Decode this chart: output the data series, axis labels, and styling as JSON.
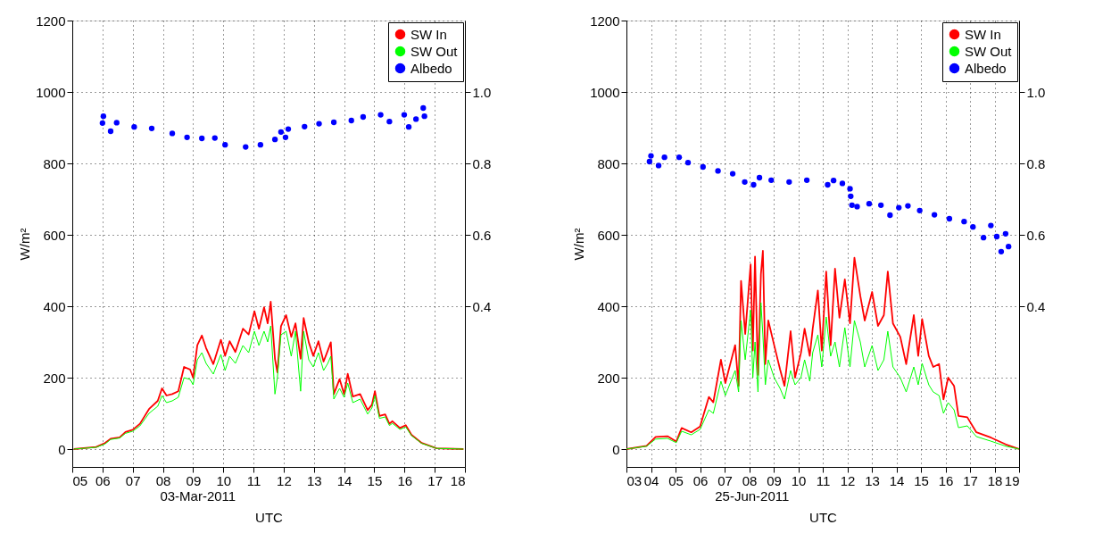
{
  "chart_data": [
    {
      "type": "line",
      "xlabel": "UTC",
      "ylabel": "W/m²",
      "annotations": [
        "03-Mar-2011"
      ],
      "legend": "top right",
      "grid": true,
      "xlim": [
        5,
        18
      ],
      "xticks": [
        {
          "value": 5,
          "label": "05"
        },
        {
          "value": 6,
          "label": "06"
        },
        {
          "value": 7,
          "label": "07"
        },
        {
          "value": 8,
          "label": "08"
        },
        {
          "value": 9,
          "label": "09"
        },
        {
          "value": 10,
          "label": "10"
        },
        {
          "value": 11,
          "label": "11"
        },
        {
          "value": 12,
          "label": "12"
        },
        {
          "value": 13,
          "label": "13"
        },
        {
          "value": 14,
          "label": "14"
        },
        {
          "value": 15,
          "label": "15"
        },
        {
          "value": 16,
          "label": "16"
        },
        {
          "value": 17,
          "label": "17"
        },
        {
          "value": 18,
          "label": "18"
        }
      ],
      "ylim": [
        -50,
        1200
      ],
      "yticks": [
        0,
        200,
        400,
        600,
        800,
        1000,
        1200
      ],
      "y2lim": [
        -0.05,
        1.2
      ],
      "y2ticks": [
        0.4,
        0.6,
        0.8,
        {
          "value": 1,
          "label": "1.0"
        }
      ],
      "series": [
        {
          "name": "SW In",
          "color": "#ff0000",
          "x": [
            5.05,
            5.79,
            6.08,
            6.27,
            6.57,
            6.76,
            7.0,
            7.24,
            7.54,
            7.83,
            7.97,
            8.12,
            8.31,
            8.51,
            8.7,
            8.9,
            9.0,
            9.14,
            9.29,
            9.43,
            9.67,
            9.92,
            10.06,
            10.21,
            10.4,
            10.65,
            10.84,
            11.03,
            11.18,
            11.35,
            11.47,
            11.57,
            11.71,
            11.79,
            11.91,
            12.08,
            12.25,
            12.39,
            12.56,
            12.66,
            12.83,
            12.98,
            13.15,
            13.32,
            13.46,
            13.56,
            13.66,
            13.85,
            14.0,
            14.12,
            14.29,
            14.53,
            14.78,
            14.92,
            15.02,
            15.17,
            15.36,
            15.5,
            15.6,
            15.85,
            16.04,
            16.23,
            16.57,
            17.06,
            17.95
          ],
          "values": [
            0,
            6,
            17,
            29,
            33,
            48,
            54,
            71,
            112,
            135,
            170,
            150,
            154,
            162,
            230,
            223,
            200,
            291,
            318,
            283,
            238,
            306,
            261,
            302,
            272,
            337,
            321,
            386,
            337,
            397,
            352,
            413,
            253,
            215,
            344,
            375,
            314,
            352,
            253,
            367,
            299,
            261,
            302,
            245,
            276,
            299,
            154,
            196,
            154,
            211,
            147,
            154,
            109,
            124,
            162,
            93,
            97,
            71,
            78,
            59,
            67,
            40,
            17,
            2,
            0
          ]
        },
        {
          "name": "SW Out",
          "color": "#00ff00",
          "x": [
            5.05,
            5.79,
            6.08,
            6.27,
            6.57,
            6.76,
            7.0,
            7.24,
            7.54,
            7.83,
            7.97,
            8.12,
            8.31,
            8.51,
            8.7,
            8.9,
            9.0,
            9.14,
            9.29,
            9.43,
            9.67,
            9.92,
            10.06,
            10.21,
            10.4,
            10.65,
            10.84,
            11.03,
            11.18,
            11.35,
            11.47,
            11.57,
            11.71,
            11.79,
            11.91,
            12.08,
            12.25,
            12.39,
            12.56,
            12.66,
            12.83,
            12.98,
            13.15,
            13.32,
            13.46,
            13.56,
            13.66,
            13.85,
            14.0,
            14.12,
            14.29,
            14.53,
            14.78,
            14.92,
            15.02,
            15.17,
            15.36,
            15.5,
            15.6,
            15.85,
            16.04,
            16.23,
            16.57,
            17.06,
            17.95
          ],
          "values": [
            0,
            5,
            14,
            27,
            31,
            44,
            50,
            65,
            100,
            120,
            150,
            130,
            135,
            145,
            200,
            195,
            180,
            250,
            270,
            240,
            210,
            265,
            220,
            260,
            240,
            290,
            270,
            330,
            290,
            330,
            300,
            345,
            154,
            200,
            320,
            330,
            260,
            330,
            162,
            330,
            250,
            230,
            270,
            220,
            240,
            260,
            140,
            170,
            145,
            185,
            130,
            140,
            98,
            115,
            150,
            86,
            90,
            66,
            72,
            55,
            62,
            38,
            16,
            2,
            0
          ]
        },
        {
          "name": "Albedo",
          "type": "scatter",
          "axis": "y2",
          "color": "#0000ff",
          "marker": "circle",
          "x": [
            6.0,
            6.03,
            6.27,
            6.47,
            7.05,
            7.63,
            8.31,
            8.8,
            9.29,
            9.72,
            10.06,
            10.74,
            11.23,
            11.71,
            11.91,
            12.06,
            12.15,
            12.69,
            13.17,
            13.66,
            14.24,
            14.63,
            15.21,
            15.5,
            15.99,
            16.14,
            16.38,
            16.62,
            16.66
          ],
          "values": [
            0.913,
            0.932,
            0.89,
            0.914,
            0.902,
            0.898,
            0.884,
            0.873,
            0.87,
            0.871,
            0.852,
            0.846,
            0.852,
            0.867,
            0.888,
            0.873,
            0.896,
            0.903,
            0.911,
            0.915,
            0.92,
            0.93,
            0.936,
            0.917,
            0.936,
            0.902,
            0.924,
            0.955,
            0.932
          ]
        }
      ]
    },
    {
      "type": "line",
      "xlabel": "UTC",
      "ylabel": "W/m²",
      "annotations": [
        "25-Jun-2011"
      ],
      "legend": "top right",
      "grid": true,
      "xlim": [
        3,
        19
      ],
      "xticks": [
        {
          "value": 3,
          "label": "03"
        },
        {
          "value": 4,
          "label": "04"
        },
        {
          "value": 5,
          "label": "05"
        },
        {
          "value": 6,
          "label": "06"
        },
        {
          "value": 7,
          "label": "07"
        },
        {
          "value": 8,
          "label": "08"
        },
        {
          "value": 9,
          "label": "09"
        },
        {
          "value": 10,
          "label": "10"
        },
        {
          "value": 11,
          "label": "11"
        },
        {
          "value": 12,
          "label": "12"
        },
        {
          "value": 13,
          "label": "13"
        },
        {
          "value": 14,
          "label": "14"
        },
        {
          "value": 15,
          "label": "15"
        },
        {
          "value": 16,
          "label": "16"
        },
        {
          "value": 17,
          "label": "17"
        },
        {
          "value": 18,
          "label": "18"
        },
        {
          "value": 19,
          "label": "19"
        }
      ],
      "ylim": [
        -50,
        1200
      ],
      "yticks": [
        0,
        200,
        400,
        600,
        800,
        1000,
        1200
      ],
      "y2lim": [
        -0.05,
        1.2
      ],
      "y2ticks": [
        0.4,
        0.6,
        0.8,
        {
          "value": 1,
          "label": "1.0"
        }
      ],
      "series": [
        {
          "name": "SW In",
          "color": "#ff0000",
          "x": [
            3.0,
            3.82,
            4.19,
            4.67,
            5.03,
            5.25,
            5.64,
            6.0,
            6.36,
            6.54,
            6.85,
            7.03,
            7.43,
            7.57,
            7.67,
            7.84,
            8.06,
            8.15,
            8.24,
            8.36,
            8.48,
            8.56,
            8.66,
            8.78,
            9.02,
            9.26,
            9.44,
            9.69,
            9.87,
            10.11,
            10.26,
            10.47,
            10.59,
            10.8,
            10.96,
            11.14,
            11.32,
            11.5,
            11.68,
            11.9,
            12.11,
            12.29,
            12.53,
            12.71,
            13.01,
            13.25,
            13.49,
            13.65,
            13.86,
            14.16,
            14.4,
            14.71,
            14.89,
            15.05,
            15.32,
            15.5,
            15.74,
            15.92,
            16.11,
            16.35,
            16.53,
            16.89,
            17.26,
            17.86,
            18.46,
            19.0
          ],
          "values": [
            0,
            9,
            34,
            36,
            21,
            59,
            47,
            63,
            146,
            131,
            250,
            185,
            291,
            177,
            471,
            322,
            517,
            276,
            539,
            208,
            490,
            555,
            238,
            360,
            291,
            223,
            177,
            330,
            200,
            269,
            337,
            261,
            337,
            444,
            276,
            497,
            291,
            505,
            368,
            475,
            352,
            536,
            429,
            360,
            440,
            345,
            375,
            497,
            352,
            314,
            238,
            375,
            261,
            364,
            261,
            230,
            238,
            139,
            200,
            177,
            93,
            89,
            47,
            32,
            13,
            0
          ]
        },
        {
          "name": "SW Out",
          "color": "#00ff00",
          "x": [
            3.0,
            3.82,
            4.19,
            4.67,
            5.03,
            5.25,
            5.64,
            6.0,
            6.36,
            6.54,
            6.85,
            7.03,
            7.43,
            7.57,
            7.67,
            7.84,
            8.06,
            8.15,
            8.24,
            8.36,
            8.48,
            8.56,
            8.66,
            8.78,
            9.02,
            9.26,
            9.44,
            9.69,
            9.87,
            10.11,
            10.26,
            10.47,
            10.59,
            10.8,
            10.96,
            11.14,
            11.32,
            11.5,
            11.68,
            11.9,
            12.11,
            12.29,
            12.53,
            12.71,
            13.01,
            13.25,
            13.49,
            13.65,
            13.86,
            14.16,
            14.4,
            14.71,
            14.89,
            15.05,
            15.32,
            15.5,
            15.74,
            15.92,
            16.11,
            16.35,
            16.53,
            16.89,
            17.26,
            17.86,
            18.46,
            19.0
          ],
          "values": [
            0,
            8,
            28,
            30,
            18,
            50,
            40,
            55,
            110,
            100,
            190,
            150,
            220,
            160,
            360,
            250,
            390,
            200,
            300,
            160,
            410,
            320,
            180,
            250,
            200,
            170,
            140,
            220,
            180,
            200,
            250,
            190,
            270,
            320,
            230,
            370,
            260,
            300,
            230,
            340,
            230,
            360,
            300,
            230,
            290,
            220,
            250,
            330,
            230,
            200,
            160,
            230,
            180,
            240,
            180,
            160,
            150,
            100,
            130,
            110,
            60,
            65,
            35,
            22,
            8,
            0
          ]
        },
        {
          "name": "Albedo",
          "type": "scatter",
          "axis": "y2",
          "color": "#0000ff",
          "marker": "circle",
          "x": [
            3.94,
            4.0,
            4.31,
            4.55,
            5.15,
            5.51,
            6.12,
            6.73,
            7.33,
            7.82,
            8.18,
            8.42,
            8.9,
            9.63,
            10.35,
            11.2,
            11.44,
            11.8,
            12.11,
            12.14,
            12.19,
            12.4,
            12.89,
            13.37,
            13.74,
            14.1,
            14.47,
            14.95,
            15.55,
            16.16,
            16.76,
            17.12,
            17.55,
            17.85,
            18.09,
            18.27,
            18.45,
            18.57
          ],
          "values": [
            0.805,
            0.821,
            0.794,
            0.817,
            0.817,
            0.802,
            0.79,
            0.779,
            0.771,
            0.748,
            0.74,
            0.76,
            0.753,
            0.748,
            0.753,
            0.74,
            0.752,
            0.744,
            0.729,
            0.708,
            0.683,
            0.679,
            0.687,
            0.683,
            0.655,
            0.676,
            0.681,
            0.668,
            0.656,
            0.645,
            0.637,
            0.622,
            0.592,
            0.626,
            0.595,
            0.553,
            0.603,
            0.567
          ]
        }
      ]
    }
  ]
}
